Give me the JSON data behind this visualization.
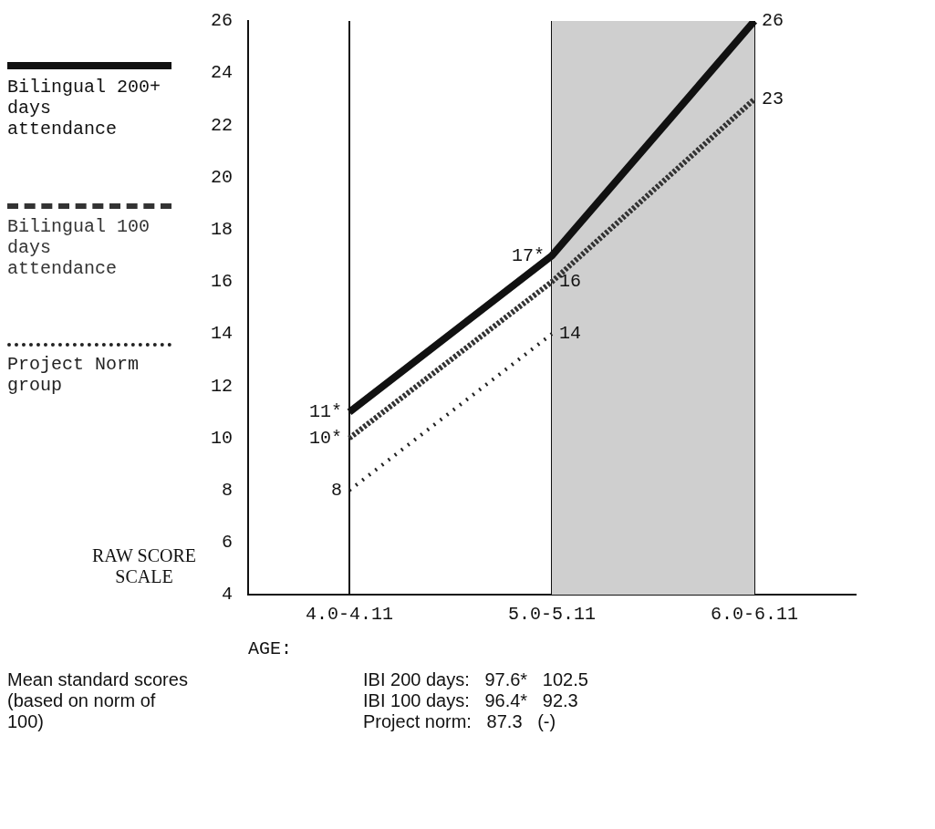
{
  "chart_data": {
    "type": "line",
    "ylabel": "RAW SCORE SCALE",
    "xlabel": "AGE:",
    "categories": [
      "4.0-4.11",
      "5.0-5.11",
      "6.0-6.11"
    ],
    "series": [
      {
        "name": "Bilingual 200+ days attendance",
        "color": "#111111",
        "line_style": "solid",
        "values": [
          11,
          17,
          26
        ],
        "value_labels": [
          "11*",
          "17*",
          "26"
        ]
      },
      {
        "name": "Bilingual 100 days attendance",
        "color": "#333333",
        "line_style": "dashed",
        "values": [
          10,
          16,
          23
        ],
        "value_labels": [
          "10*",
          "16",
          "23"
        ]
      },
      {
        "name": "Project Norm group",
        "color": "#222222",
        "line_style": "dotted",
        "values": [
          8,
          14,
          null
        ],
        "value_labels": [
          "8",
          "14",
          null
        ]
      }
    ],
    "ylim": [
      4,
      26
    ],
    "yticks": [
      4,
      6,
      8,
      10,
      12,
      14,
      16,
      18,
      20,
      22,
      24,
      26
    ],
    "grid": "x",
    "legend": "left",
    "marker": "none",
    "bands": [
      {
        "axis": "x",
        "from": "5.0-5.11",
        "to": "6.0-6.11",
        "color": "#cfcfcf"
      }
    ],
    "annotations": [
      "Mean standard scores (based on norm of 100)",
      "IBI 200 days:   97.6*   102.5",
      "IBI 100 days:   96.4*   92.3",
      "Project norm:   87.3   (-)"
    ]
  }
}
